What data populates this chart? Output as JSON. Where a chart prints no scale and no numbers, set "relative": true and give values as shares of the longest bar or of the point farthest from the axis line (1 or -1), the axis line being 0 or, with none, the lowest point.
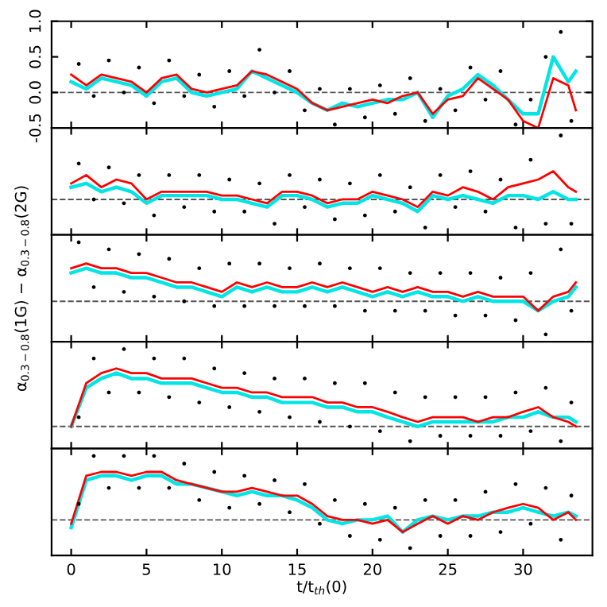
{
  "chart_data": [
    {
      "type": "line",
      "xlim": [
        -1.3,
        34.6
      ],
      "ylim": [
        -0.5,
        1.0
      ],
      "xticks": [
        0,
        5,
        10,
        15,
        20,
        25,
        30
      ],
      "yticks": [
        {
          "value": -0.5,
          "label": "-0.5"
        },
        {
          "value": 0,
          "label": "0.0"
        },
        {
          "value": 0.5,
          "label": "0.5"
        },
        {
          "value": 1.0,
          "label": "1.0"
        }
      ],
      "tick_labels": "y",
      "ref_lines": [
        {
          "axis": "y",
          "value": 0,
          "color": "#555555",
          "line_style": "dashed"
        }
      ],
      "x": [
        0,
        1,
        2,
        3,
        4,
        5,
        6,
        7,
        8,
        9,
        10,
        11,
        12,
        13,
        14,
        15,
        16,
        17,
        18,
        19,
        20,
        21,
        22,
        23,
        24,
        25,
        26,
        27,
        28,
        29,
        30,
        31,
        32,
        33,
        33.5
      ],
      "series": [
        {
          "type": "scatter",
          "color": "#000000",
          "marker": "circle",
          "x": [
            0.5,
            1.5,
            2.5,
            3.5,
            4.5,
            5.5,
            6.5,
            7.5,
            8.5,
            9.5,
            10.5,
            11.5,
            12.5,
            13.5,
            14.5,
            15.5,
            16.5,
            17.5,
            18.5,
            19.5,
            20.5,
            21.5,
            22.5,
            23.5,
            24.5,
            25.5,
            26.5,
            27.5,
            28.5,
            29.5,
            30.5,
            31.5,
            32.5,
            33.2
          ],
          "values": [
            0.4,
            -0.05,
            0.45,
            0.0,
            0.35,
            -0.15,
            0.45,
            -0.05,
            0.25,
            -0.2,
            0.3,
            -0.05,
            0.6,
            0.0,
            0.3,
            -0.25,
            0.05,
            -0.45,
            0.05,
            -0.35,
            0.1,
            -0.3,
            0.2,
            -0.4,
            0.05,
            -0.25,
            0.35,
            -0.1,
            0.3,
            -0.45,
            -0.1,
            0.5,
            0.85,
            -0.4
          ]
        },
        {
          "color": "#00e5e5",
          "values": [
            0.15,
            0.05,
            0.2,
            0.15,
            0.1,
            -0.05,
            0.15,
            0.2,
            0.0,
            -0.05,
            0.0,
            0.05,
            0.3,
            0.2,
            0.1,
            0.0,
            -0.15,
            -0.25,
            -0.15,
            -0.2,
            -0.15,
            -0.1,
            -0.1,
            0.0,
            -0.35,
            -0.05,
            0.05,
            0.25,
            0.1,
            -0.1,
            -0.3,
            -0.3,
            0.5,
            0.15,
            0.3
          ]
        },
        {
          "color": "#ff0000",
          "values": [
            0.25,
            0.1,
            0.25,
            0.2,
            0.15,
            0.0,
            0.2,
            0.25,
            0.05,
            0.0,
            0.05,
            0.1,
            0.3,
            0.25,
            0.15,
            0.05,
            -0.15,
            -0.25,
            -0.2,
            -0.15,
            -0.1,
            -0.15,
            -0.05,
            0.0,
            -0.3,
            -0.1,
            -0.05,
            0.2,
            0.05,
            -0.1,
            -0.4,
            -0.5,
            0.2,
            0.1,
            -0.25
          ]
        }
      ]
    },
    {
      "type": "line",
      "relative": true,
      "xlim": [
        -1.3,
        34.6
      ],
      "xticks": [
        0,
        5,
        10,
        15,
        20,
        25,
        30
      ],
      "tick_labels": false,
      "ref_lines": [
        {
          "axis": "y",
          "value": 0,
          "color": "#555555",
          "line_style": "dashed"
        }
      ],
      "x": [
        0,
        1,
        2,
        3,
        4,
        5,
        6,
        7,
        8,
        9,
        10,
        11,
        12,
        13,
        14,
        15,
        16,
        17,
        18,
        19,
        20,
        21,
        22,
        23,
        24,
        25,
        26,
        27,
        28,
        29,
        30,
        31,
        32,
        33,
        33.5
      ],
      "series": [
        {
          "type": "scatter",
          "color": "#000000",
          "marker": "circle",
          "x": [
            0.5,
            1.5,
            2.5,
            3.5,
            4.5,
            5.5,
            6.5,
            7.5,
            8.5,
            9.5,
            10.5,
            11.5,
            12.5,
            13.5,
            14.5,
            15.5,
            16.5,
            17.5,
            18.5,
            19.5,
            20.5,
            21.5,
            22.5,
            23.5,
            24.5,
            25.5,
            26.5,
            27.5,
            28.5,
            29.5,
            30.5,
            31.5,
            32.5,
            33.2
          ],
          "values": [
            0.56,
            0.0,
            0.5,
            -0.06,
            0.38,
            -0.25,
            0.38,
            -0.12,
            0.38,
            -0.19,
            0.31,
            -0.19,
            0.25,
            -0.38,
            0.38,
            -0.12,
            0.31,
            -0.31,
            0.25,
            -0.25,
            0.38,
            -0.19,
            0.19,
            -0.44,
            0.38,
            -0.12,
            0.44,
            -0.19,
            0.31,
            -0.44,
            0.62,
            -0.38,
            1.0,
            -0.38
          ]
        },
        {
          "color": "#00e5e5",
          "values": [
            0.19,
            0.25,
            0.12,
            0.19,
            0.12,
            -0.06,
            0.06,
            0.06,
            0.06,
            0.06,
            0.0,
            0.0,
            -0.06,
            -0.12,
            0.06,
            0.06,
            0.0,
            -0.12,
            -0.06,
            -0.06,
            0.06,
            0.0,
            -0.06,
            -0.19,
            0.06,
            0.0,
            0.06,
            0.0,
            -0.06,
            0.06,
            0.06,
            0.0,
            0.12,
            0.0,
            0.0
          ]
        },
        {
          "color": "#ff0000",
          "values": [
            0.25,
            0.38,
            0.19,
            0.31,
            0.25,
            0.0,
            0.12,
            0.12,
            0.12,
            0.12,
            0.06,
            0.06,
            0.0,
            -0.06,
            0.12,
            0.12,
            0.06,
            -0.06,
            0.0,
            0.0,
            0.12,
            0.06,
            0.0,
            -0.12,
            0.12,
            0.06,
            0.19,
            0.12,
            0.0,
            0.19,
            0.25,
            0.31,
            0.44,
            0.19,
            0.12
          ]
        }
      ]
    },
    {
      "type": "line",
      "relative": true,
      "xlim": [
        -1.3,
        34.6
      ],
      "xticks": [
        0,
        5,
        10,
        15,
        20,
        25,
        30
      ],
      "tick_labels": false,
      "ylabel": "α$_{0.3−0.8}$(1G) − α$_{0.3−0.8}$(2G)",
      "ref_lines": [
        {
          "axis": "y",
          "value": 0,
          "color": "#555555",
          "line_style": "dashed"
        }
      ],
      "x": [
        0,
        1,
        2,
        3,
        4,
        5,
        6,
        7,
        8,
        9,
        10,
        11,
        12,
        13,
        14,
        15,
        16,
        17,
        18,
        19,
        20,
        21,
        22,
        23,
        24,
        25,
        26,
        27,
        28,
        29,
        30,
        31,
        32,
        33,
        33.5
      ],
      "series": [
        {
          "type": "scatter",
          "color": "#000000",
          "marker": "circle",
          "x": [
            0.5,
            1.5,
            2.5,
            3.5,
            4.5,
            5.5,
            6.5,
            7.5,
            8.5,
            9.5,
            10.5,
            11.5,
            12.5,
            13.5,
            14.5,
            15.5,
            16.5,
            17.5,
            18.5,
            19.5,
            20.5,
            21.5,
            22.5,
            23.5,
            24.5,
            25.5,
            26.5,
            27.5,
            28.5,
            29.5,
            30.5,
            31.5,
            32.5,
            33.2
          ],
          "values": [
            1.0,
            0.24,
            0.88,
            0.16,
            0.8,
            0.08,
            0.72,
            0.0,
            0.56,
            -0.08,
            0.64,
            -0.08,
            0.64,
            -0.08,
            0.56,
            -0.08,
            0.64,
            -0.08,
            0.56,
            -0.16,
            0.56,
            -0.16,
            0.48,
            -0.16,
            0.48,
            -0.24,
            0.48,
            -0.24,
            0.4,
            -0.32,
            0.48,
            -0.56,
            0.88,
            -0.16
          ]
        },
        {
          "color": "#00e5e5",
          "values": [
            0.48,
            0.56,
            0.48,
            0.48,
            0.4,
            0.4,
            0.32,
            0.24,
            0.24,
            0.16,
            0.08,
            0.24,
            0.16,
            0.24,
            0.16,
            0.16,
            0.24,
            0.16,
            0.24,
            0.16,
            0.08,
            0.16,
            0.08,
            0.16,
            0.08,
            0.08,
            0.0,
            0.08,
            0.0,
            0.0,
            0.0,
            -0.16,
            0.0,
            0.08,
            0.24
          ]
        },
        {
          "color": "#ff0000",
          "values": [
            0.56,
            0.64,
            0.56,
            0.56,
            0.48,
            0.48,
            0.4,
            0.32,
            0.32,
            0.24,
            0.16,
            0.32,
            0.24,
            0.32,
            0.24,
            0.24,
            0.32,
            0.24,
            0.32,
            0.24,
            0.16,
            0.24,
            0.16,
            0.24,
            0.16,
            0.16,
            0.08,
            0.16,
            0.08,
            0.08,
            0.08,
            -0.16,
            0.08,
            0.16,
            0.32
          ]
        }
      ]
    },
    {
      "type": "line",
      "relative": true,
      "xlim": [
        -1.3,
        34.6
      ],
      "xticks": [
        0,
        5,
        10,
        15,
        20,
        25,
        30
      ],
      "tick_labels": false,
      "ref_lines": [
        {
          "axis": "y",
          "value": 0,
          "color": "#555555",
          "line_style": "dashed"
        }
      ],
      "x": [
        0,
        1,
        2,
        3,
        4,
        5,
        6,
        7,
        8,
        9,
        10,
        11,
        12,
        13,
        14,
        15,
        16,
        17,
        18,
        19,
        20,
        21,
        22,
        23,
        24,
        25,
        26,
        27,
        28,
        29,
        30,
        31,
        32,
        33,
        33.5
      ],
      "series": [
        {
          "type": "scatter",
          "color": "#000000",
          "marker": "circle",
          "x": [
            0.5,
            1.5,
            2.5,
            3.5,
            4.5,
            5.5,
            6.5,
            7.5,
            8.5,
            9.5,
            10.5,
            11.5,
            12.5,
            13.5,
            14.5,
            15.5,
            16.5,
            17.5,
            18.5,
            19.5,
            20.5,
            21.5,
            22.5,
            23.5,
            24.5,
            25.5,
            26.5,
            27.5,
            28.5,
            29.5,
            30.5,
            31.5,
            32.5,
            33.2
          ],
          "values": [
            0.12,
            0.88,
            0.44,
            1.0,
            0.44,
            0.88,
            0.38,
            0.88,
            0.31,
            0.75,
            0.25,
            0.69,
            0.19,
            0.62,
            0.12,
            0.62,
            0.06,
            0.56,
            0.0,
            0.56,
            -0.06,
            0.44,
            -0.19,
            0.38,
            -0.12,
            0.38,
            -0.12,
            0.38,
            -0.12,
            0.44,
            -0.06,
            0.5,
            -0.19,
            0.31
          ]
        },
        {
          "color": "#00e5e5",
          "values": [
            0.0,
            0.5,
            0.62,
            0.69,
            0.62,
            0.62,
            0.56,
            0.56,
            0.56,
            0.5,
            0.44,
            0.44,
            0.38,
            0.38,
            0.31,
            0.31,
            0.31,
            0.25,
            0.25,
            0.19,
            0.19,
            0.12,
            0.06,
            0.0,
            0.06,
            0.06,
            0.06,
            0.06,
            0.06,
            0.12,
            0.12,
            0.19,
            0.12,
            0.12,
            0.06
          ]
        },
        {
          "color": "#ff0000",
          "values": [
            0.0,
            0.56,
            0.69,
            0.75,
            0.69,
            0.69,
            0.62,
            0.62,
            0.62,
            0.56,
            0.5,
            0.5,
            0.44,
            0.44,
            0.38,
            0.38,
            0.38,
            0.31,
            0.31,
            0.25,
            0.25,
            0.19,
            0.12,
            0.06,
            0.12,
            0.12,
            0.12,
            0.06,
            0.12,
            0.12,
            0.19,
            0.25,
            0.12,
            0.06,
            0.0
          ]
        }
      ]
    },
    {
      "type": "line",
      "relative": true,
      "xlim": [
        -1.3,
        34.6
      ],
      "xticks": [
        0,
        5,
        10,
        15,
        20,
        25,
        30
      ],
      "tick_labels": "x",
      "xlabel": "t/t$_{th}$(0)",
      "ref_lines": [
        {
          "axis": "y",
          "value": 0,
          "color": "#555555",
          "line_style": "dashed"
        }
      ],
      "x": [
        0,
        1,
        2,
        3,
        4,
        5,
        6,
        7,
        8,
        9,
        10,
        11,
        12,
        13,
        14,
        15,
        16,
        17,
        18,
        19,
        20,
        21,
        22,
        23,
        24,
        25,
        26,
        27,
        28,
        29,
        30,
        31,
        32,
        33,
        33.5
      ],
      "series": [
        {
          "type": "scatter",
          "color": "#000000",
          "marker": "circle",
          "x": [
            0.5,
            1.5,
            2.5,
            3.5,
            4.5,
            5.5,
            6.5,
            7.5,
            8.5,
            9.5,
            10.5,
            11.5,
            12.5,
            13.5,
            14.5,
            15.5,
            16.5,
            17.5,
            18.5,
            19.5,
            20.5,
            21.5,
            22.5,
            23.5,
            24.5,
            25.5,
            26.5,
            27.5,
            28.5,
            29.5,
            30.5,
            31.5,
            32.5,
            33.2
          ],
          "values": [
            0.25,
            1.0,
            0.5,
            1.0,
            0.5,
            1.0,
            0.5,
            0.88,
            0.31,
            0.75,
            0.19,
            0.69,
            0.25,
            0.62,
            0.12,
            0.56,
            -0.06,
            0.31,
            -0.25,
            0.25,
            -0.31,
            0.19,
            -0.44,
            0.31,
            -0.25,
            0.31,
            -0.25,
            0.44,
            -0.19,
            0.56,
            -0.06,
            0.5,
            -0.31,
            0.38
          ]
        },
        {
          "color": "#00e5e5",
          "values": [
            -0.12,
            0.62,
            0.69,
            0.69,
            0.62,
            0.69,
            0.69,
            0.56,
            0.56,
            0.5,
            0.44,
            0.38,
            0.44,
            0.38,
            0.38,
            0.31,
            0.19,
            0.0,
            -0.06,
            0.0,
            0.0,
            0.06,
            -0.19,
            0.0,
            0.06,
            0.0,
            0.06,
            0.06,
            0.12,
            0.12,
            0.19,
            0.12,
            0.06,
            0.12,
            0.06
          ]
        },
        {
          "color": "#ff0000",
          "values": [
            -0.06,
            0.69,
            0.75,
            0.75,
            0.69,
            0.75,
            0.75,
            0.62,
            0.56,
            0.5,
            0.44,
            0.44,
            0.5,
            0.44,
            0.38,
            0.38,
            0.25,
            0.06,
            0.0,
            0.0,
            -0.06,
            0.0,
            -0.19,
            -0.06,
            0.06,
            -0.06,
            0.06,
            0.0,
            0.12,
            0.19,
            0.25,
            0.19,
            0.0,
            0.12,
            0.0
          ]
        }
      ]
    }
  ]
}
